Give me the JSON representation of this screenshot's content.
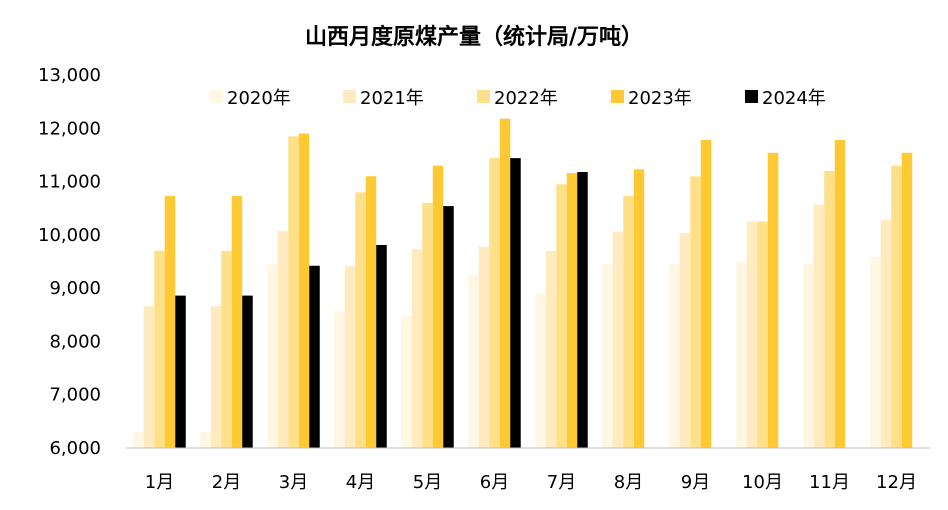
{
  "chart_data": {
    "type": "bar",
    "title": "山西月度原煤产量（统计局/万吨）",
    "categories": [
      "1月",
      "2月",
      "3月",
      "4月",
      "5月",
      "6月",
      "7月",
      "8月",
      "9月",
      "10月",
      "11月",
      "12月"
    ],
    "ylim": [
      6000,
      13000
    ],
    "yticks": [
      6000,
      7000,
      8000,
      9000,
      10000,
      11000,
      12000,
      13000
    ],
    "ytick_labels": [
      "6,000",
      "7,000",
      "8,000",
      "9,000",
      "10,000",
      "11,000",
      "12,000",
      "13,000"
    ],
    "grid": false,
    "legend_position": "top",
    "series": [
      {
        "name": "2020年",
        "color": "#FFF7E3",
        "values": [
          6300,
          6300,
          9450,
          8580,
          8480,
          9250,
          8900,
          9450,
          9450,
          9500,
          9450,
          9580
        ]
      },
      {
        "name": "2021年",
        "color": "#FFEBBF",
        "values": [
          8660,
          8660,
          10070,
          9420,
          9730,
          9780,
          9700,
          10060,
          10030,
          10250,
          10570,
          10280
        ]
      },
      {
        "name": "2022年",
        "color": "#FFE08A",
        "values": [
          9700,
          9700,
          11850,
          10800,
          10600,
          11440,
          10950,
          10730,
          11100,
          10250,
          11200,
          11300
        ]
      },
      {
        "name": "2023年",
        "color": "#FFC933",
        "values": [
          10730,
          10730,
          11900,
          11100,
          11300,
          12180,
          11160,
          11230,
          11780,
          11540,
          11780,
          11540
        ]
      },
      {
        "name": "2024年",
        "color": "#000000",
        "values": [
          8860,
          8860,
          9420,
          9810,
          10540,
          11440,
          11180,
          null,
          null,
          null,
          null,
          null
        ]
      }
    ]
  }
}
